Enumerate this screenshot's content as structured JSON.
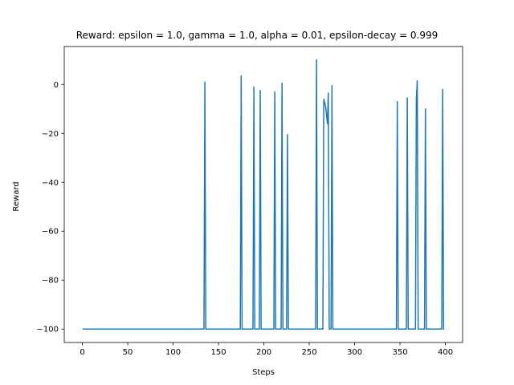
{
  "chart_data": {
    "type": "line",
    "title": "Reward: epsilon = 1.0, gamma = 1.0, alpha = 0.01, epsilon-decay = 0.999",
    "xlabel": "Steps",
    "ylabel": "Reward",
    "xlim": [
      -19.95,
      418.95
    ],
    "ylim": [
      -105.5,
      15.5
    ],
    "xticks": [
      0,
      50,
      100,
      150,
      200,
      250,
      300,
      350,
      400
    ],
    "yticks": [
      -100,
      -80,
      -60,
      -40,
      -20,
      0
    ],
    "grid": false,
    "legend": "none",
    "colors": {
      "line": "#1f77b4"
    },
    "series": [
      {
        "x": [
          1,
          134,
          135,
          136,
          174,
          175,
          176,
          188,
          189,
          190,
          195,
          196,
          197,
          211,
          212,
          213,
          219,
          220,
          221,
          225,
          226,
          227,
          257,
          258,
          259,
          265,
          266,
          268,
          270,
          271,
          272,
          274,
          275,
          276,
          346,
          347,
          348,
          357,
          358,
          359,
          366,
          367,
          368,
          369,
          370,
          371,
          377,
          378,
          379,
          396,
          397,
          398
        ],
        "y": [
          -100,
          -100,
          1,
          -100,
          -100,
          3.5,
          -100,
          -100,
          -1,
          -100,
          -100,
          -2.5,
          -100,
          -100,
          -3,
          -100,
          -100,
          0.5,
          -100,
          -100,
          -20.5,
          -100,
          -100,
          10,
          -100,
          -100,
          -6,
          -9,
          -16,
          -3.5,
          -100,
          -100,
          -0.5,
          -100,
          -100,
          -7,
          -100,
          -100,
          -5.5,
          -100,
          -100,
          -100,
          -6,
          1.5,
          -100,
          -100,
          -100,
          -10,
          -100,
          -100,
          -2,
          -100
        ]
      }
    ]
  }
}
